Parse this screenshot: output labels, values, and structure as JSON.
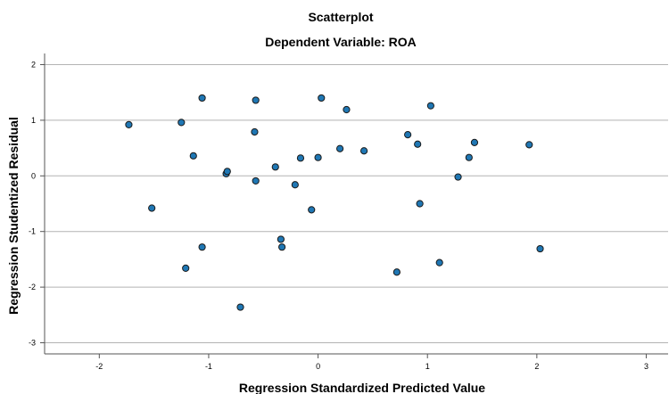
{
  "chart_data": {
    "type": "scatter",
    "title": "Scatterplot",
    "subtitle": "Dependent Variable: ROA",
    "xlabel": "Regression Standardized Predicted Value",
    "ylabel": "Regression Studentized Residual",
    "xlim": [
      -2.5,
      3.2
    ],
    "ylim": [
      -3.2,
      2.2
    ],
    "xticks": [
      -2,
      -1,
      0,
      1,
      2,
      3
    ],
    "yticks": [
      2,
      1,
      0,
      -1,
      -2,
      -3
    ],
    "grid": "horizontal",
    "point_color": "#1f77b4",
    "points": [
      {
        "x": -1.73,
        "y": 0.92
      },
      {
        "x": -1.52,
        "y": -0.58
      },
      {
        "x": -1.25,
        "y": 0.96
      },
      {
        "x": -1.21,
        "y": -1.66
      },
      {
        "x": -1.14,
        "y": 0.36
      },
      {
        "x": -1.06,
        "y": 1.4
      },
      {
        "x": -1.06,
        "y": -1.28
      },
      {
        "x": -0.84,
        "y": 0.04
      },
      {
        "x": -0.83,
        "y": 0.08
      },
      {
        "x": -0.71,
        "y": -2.36
      },
      {
        "x": -0.58,
        "y": 0.79
      },
      {
        "x": -0.57,
        "y": 1.36
      },
      {
        "x": -0.57,
        "y": -0.09
      },
      {
        "x": -0.39,
        "y": 0.16
      },
      {
        "x": -0.34,
        "y": -1.14
      },
      {
        "x": -0.33,
        "y": -1.28
      },
      {
        "x": -0.21,
        "y": -0.16
      },
      {
        "x": -0.16,
        "y": 0.32
      },
      {
        "x": -0.06,
        "y": -0.61
      },
      {
        "x": 0.0,
        "y": 0.33
      },
      {
        "x": 0.03,
        "y": 1.4
      },
      {
        "x": 0.2,
        "y": 0.49
      },
      {
        "x": 0.26,
        "y": 1.19
      },
      {
        "x": 0.42,
        "y": 0.45
      },
      {
        "x": 0.72,
        "y": -1.73
      },
      {
        "x": 0.82,
        "y": 0.74
      },
      {
        "x": 0.91,
        "y": 0.57
      },
      {
        "x": 0.93,
        "y": -0.5
      },
      {
        "x": 1.03,
        "y": 1.26
      },
      {
        "x": 1.11,
        "y": -1.56
      },
      {
        "x": 1.28,
        "y": -0.02
      },
      {
        "x": 1.38,
        "y": 0.33
      },
      {
        "x": 1.43,
        "y": 0.6
      },
      {
        "x": 1.93,
        "y": 0.56
      },
      {
        "x": 2.03,
        "y": -1.31
      }
    ]
  }
}
